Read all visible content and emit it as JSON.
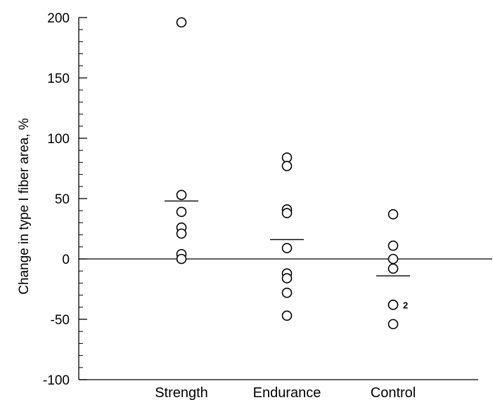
{
  "chart_data": {
    "type": "scatter",
    "title": "",
    "xlabel": "",
    "ylabel": "Change in type I fiber area, %",
    "ylim": [
      -100,
      200
    ],
    "yticks": [
      -100,
      -50,
      0,
      50,
      100,
      150,
      200
    ],
    "ytick_labels": [
      "-100",
      "-50",
      "0",
      "50",
      "100",
      "150",
      "200"
    ],
    "y_minor_step": 10,
    "categories": [
      "Strength",
      "Endurance",
      "Control"
    ],
    "reference_line": 0,
    "grid": false,
    "groups": [
      {
        "category": "Strength",
        "points": [
          196,
          53,
          39,
          26,
          21,
          4,
          0
        ],
        "mean": 48
      },
      {
        "category": "Endurance",
        "points": [
          84,
          77,
          41,
          38,
          9,
          -12,
          -16,
          -28,
          -47
        ],
        "mean": 16
      },
      {
        "category": "Control",
        "points": [
          37,
          11,
          0,
          -8,
          -38,
          -38,
          -54
        ],
        "mean": -14
      }
    ],
    "annotations": [
      {
        "category": "Control",
        "y": -38,
        "text": "2"
      }
    ]
  }
}
